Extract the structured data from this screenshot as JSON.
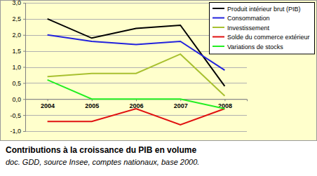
{
  "chart_data": {
    "type": "line",
    "title": "Contributions à la croissance du PIB en volume",
    "subtitle": "doc. GDD, source Insee, comptes nationaux, base 2000.",
    "categories": [
      "2004",
      "2005",
      "2006",
      "2007",
      "2008"
    ],
    "series": [
      {
        "name": "Produit intérieur brut (PIB)",
        "color": "#000000",
        "values": [
          2.5,
          1.9,
          2.2,
          2.3,
          0.4
        ]
      },
      {
        "name": "Consommation",
        "color": "#2222dd",
        "values": [
          2.0,
          1.8,
          1.7,
          1.8,
          0.9
        ]
      },
      {
        "name": "Investissement",
        "color": "#a8c030",
        "values": [
          0.7,
          0.8,
          0.8,
          1.4,
          0.1
        ]
      },
      {
        "name": "Solde du commerce extérieur",
        "color": "#e01010",
        "values": [
          -0.7,
          -0.7,
          -0.3,
          -0.8,
          -0.3
        ]
      },
      {
        "name": "Variations de stocks",
        "color": "#22ee22",
        "values": [
          0.6,
          0.0,
          0.0,
          0.0,
          -0.3
        ]
      }
    ],
    "ylim": [
      -1.0,
      3.0
    ],
    "yticks": [
      {
        "value": -1.0,
        "label": "-1,0"
      },
      {
        "value": -0.5,
        "label": "-0,5"
      },
      {
        "value": 0.0,
        "label": "0,0"
      },
      {
        "value": 0.5,
        "label": "0,5"
      },
      {
        "value": 1.0,
        "label": "1,0"
      },
      {
        "value": 1.5,
        "label": "1,5"
      },
      {
        "value": 2.0,
        "label": "2,0"
      },
      {
        "value": 2.5,
        "label": "2,5"
      },
      {
        "value": 3.0,
        "label": "3,0"
      }
    ],
    "grid": true,
    "legend": "top-right"
  }
}
